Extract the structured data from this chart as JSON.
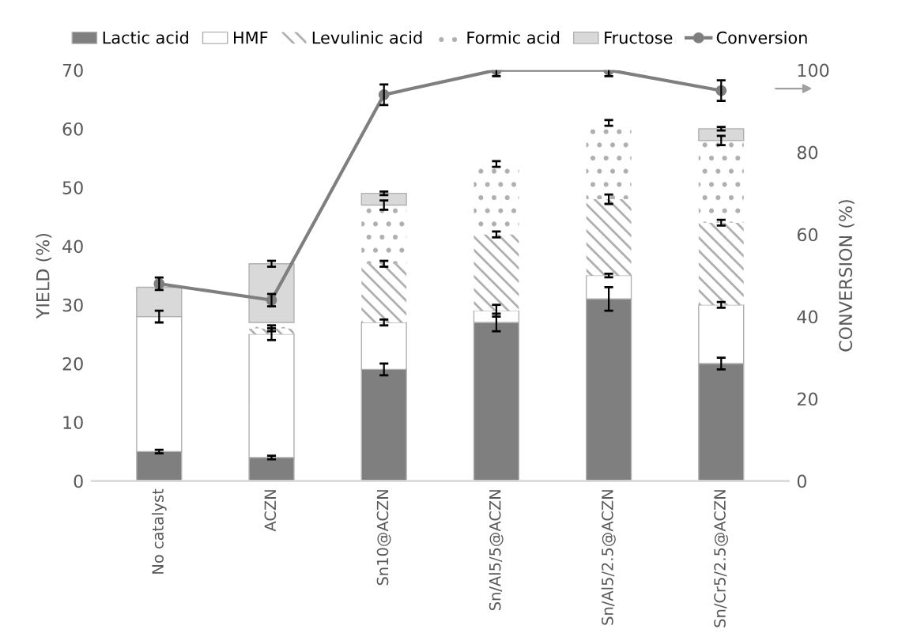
{
  "chart_data": {
    "type": "bar",
    "stacked": true,
    "ylabel": "YIELD (%)",
    "y2label": "CONVERSION (%)",
    "categories": [
      "No catalyst",
      "ACZN",
      "Sn10@ACZN",
      "Sn/Al5/5@ACZN",
      "Sn/Al5/2.5@ACZN",
      "Sn/Cr5/2.5@ACZN"
    ],
    "series": [
      {
        "name": "Lactic acid",
        "color": "#7f7f7f",
        "values": [
          5,
          4,
          19,
          27,
          31,
          20
        ],
        "errors": [
          0.3,
          0.3,
          1,
          1.5,
          2,
          1
        ]
      },
      {
        "name": "HMF",
        "color": "#ffffff",
        "values": [
          23,
          21,
          8,
          2,
          4,
          10
        ],
        "errors": [
          1,
          1,
          0.5,
          1,
          0.3,
          0.5
        ]
      },
      {
        "name": "Levulinic acid",
        "color": "#ffffff",
        "values": [
          null,
          1,
          10,
          13,
          13,
          14
        ],
        "errors": [
          null,
          0.5,
          0.5,
          0.5,
          0.8,
          0.5
        ]
      },
      {
        "name": "Formic acid",
        "color": "#ffffff",
        "values": [
          null,
          1,
          10,
          12,
          13,
          14
        ],
        "errors": [
          null,
          null,
          0.8,
          0.5,
          0.5,
          0.8
        ]
      },
      {
        "name": "Fructose",
        "color": "#d9d9d9",
        "values": [
          5,
          10,
          2,
          null,
          null,
          2
        ],
        "errors": [
          null,
          0.5,
          0.3,
          null,
          null,
          0.3
        ]
      },
      {
        "name": "Conversion",
        "type": "line",
        "axis": "y2",
        "color": "#7f7f7f",
        "marker": "circle",
        "values": [
          48,
          44,
          94,
          100,
          100,
          95
        ],
        "errors": [
          1.5,
          1.5,
          2.5,
          1.5,
          1.5,
          2.5
        ]
      }
    ],
    "ylim": [
      0,
      70
    ],
    "yticks": [
      0,
      10,
      20,
      30,
      40,
      50,
      60,
      70
    ],
    "y2lim": [
      0,
      100
    ],
    "y2ticks": [
      0,
      20,
      40,
      60,
      80,
      100
    ],
    "grid": false,
    "legend": "top"
  }
}
